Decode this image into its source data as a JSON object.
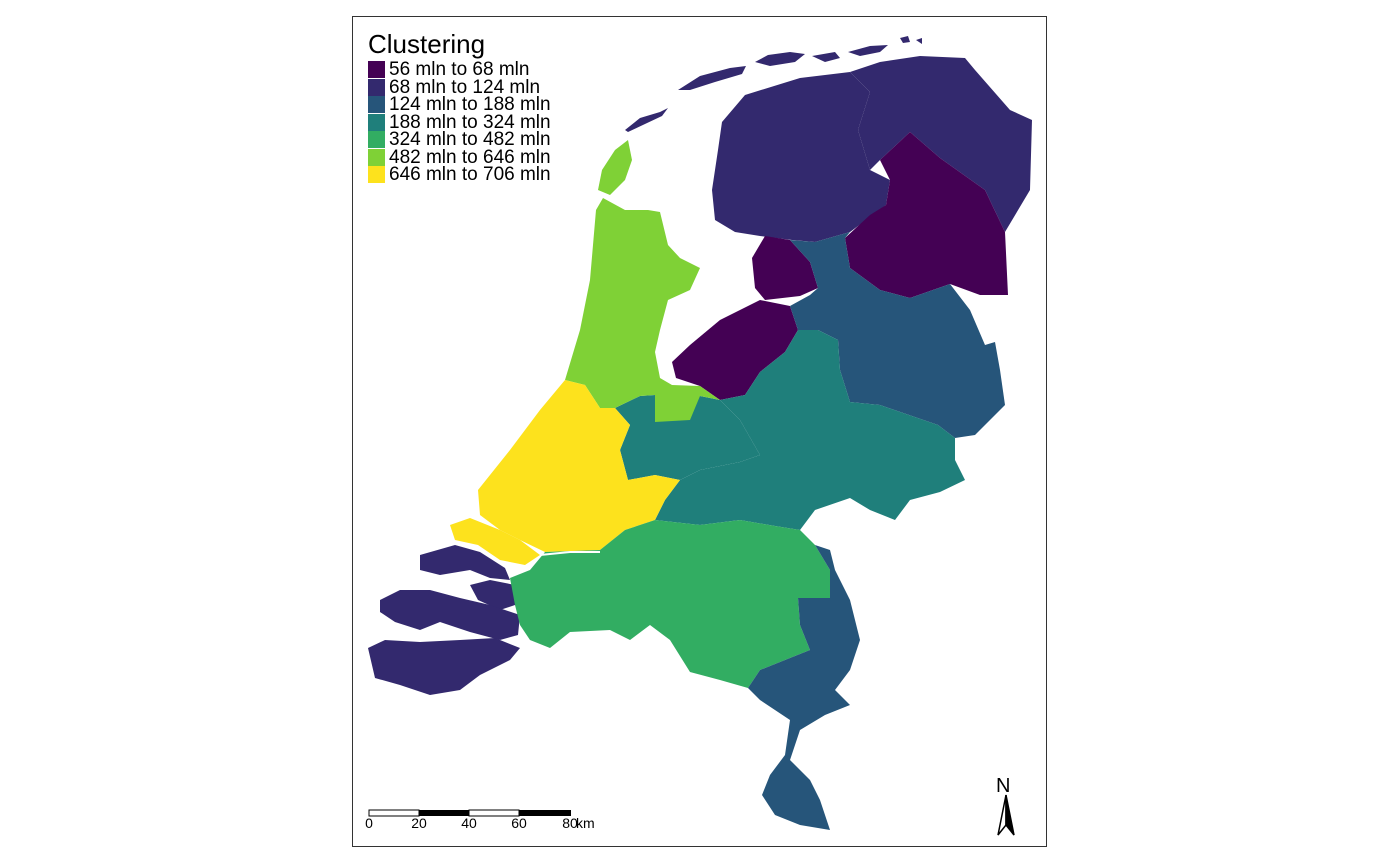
{
  "legend": {
    "title": "Clustering",
    "items": [
      {
        "label": "56 mln to 68 mln",
        "color": "#440154"
      },
      {
        "label": "68 mln to 124 mln",
        "color": "#33296e"
      },
      {
        "label": "124 mln to 188 mln",
        "color": "#26557a"
      },
      {
        "label": "188 mln to 324 mln",
        "color": "#1f7f7b"
      },
      {
        "label": "324 mln to 482 mln",
        "color": "#32ad62"
      },
      {
        "label": "482 mln to 646 mln",
        "color": "#7fd136"
      },
      {
        "label": "646 mln to 706 mln",
        "color": "#fde21d"
      }
    ]
  },
  "regions": [
    {
      "name": "Groningen",
      "class": "68 mln to 124 mln"
    },
    {
      "name": "Friesland",
      "class": "68 mln to 124 mln"
    },
    {
      "name": "Drenthe",
      "class": "56 mln to 68 mln"
    },
    {
      "name": "Noordoostpolder",
      "class": "56 mln to 68 mln"
    },
    {
      "name": "Flevoland",
      "class": "56 mln to 68 mln"
    },
    {
      "name": "Overijssel",
      "class": "124 mln to 188 mln"
    },
    {
      "name": "Gelderland",
      "class": "188 mln to 324 mln"
    },
    {
      "name": "Utrecht",
      "class": "188 mln to 324 mln"
    },
    {
      "name": "Noord-Holland",
      "class": "482 mln to 646 mln"
    },
    {
      "name": "Zuid-Holland",
      "class": "646 mln to 706 mln"
    },
    {
      "name": "Zeeland",
      "class": "68 mln to 124 mln"
    },
    {
      "name": "Noord-Brabant",
      "class": "324 mln to 482 mln"
    },
    {
      "name": "Limburg",
      "class": "124 mln to 188 mln"
    }
  ],
  "scalebar": {
    "ticks": [
      "0",
      "20",
      "40",
      "60",
      "80"
    ],
    "unit": "km"
  },
  "north_arrow": {
    "label": "N"
  }
}
